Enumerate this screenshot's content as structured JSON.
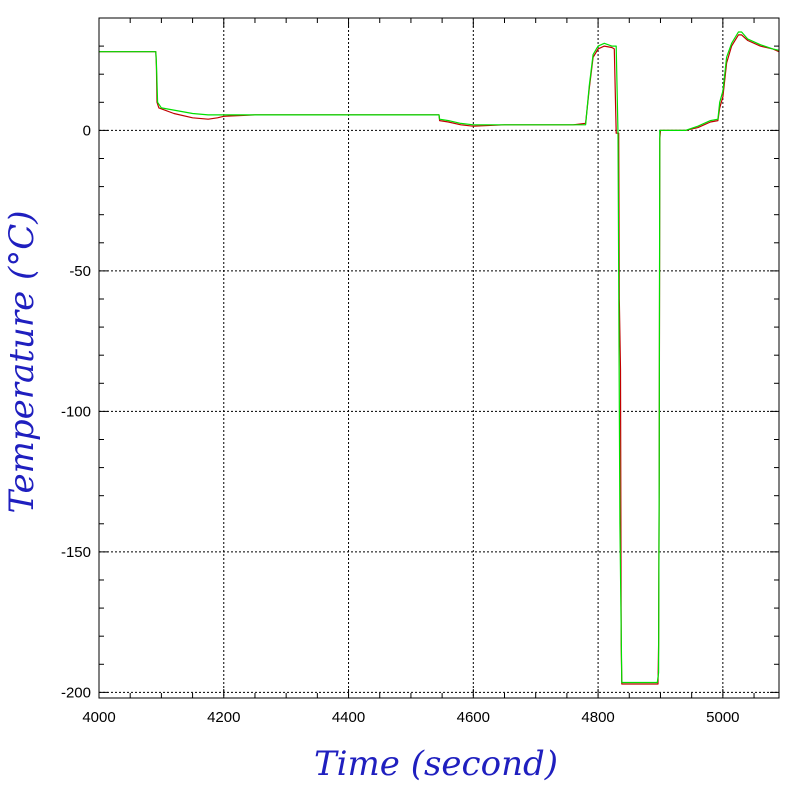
{
  "chart_data": {
    "type": "line",
    "xlabel": "Time (second)",
    "ylabel": "Temperature (°C)",
    "xlim": [
      4000,
      5090
    ],
    "ylim": [
      -202,
      40
    ],
    "grid": true,
    "x_ticks": [
      4000,
      4200,
      4400,
      4600,
      4800,
      5000
    ],
    "y_ticks": [
      0,
      -50,
      -100,
      -150,
      -200
    ],
    "x_tick_labels": [
      "4000",
      "4200",
      "4400",
      "4600",
      "4800",
      "5000"
    ],
    "y_tick_labels": [
      "0",
      "-50",
      "-100",
      "-150",
      "-200"
    ],
    "series": [
      {
        "color": "#c00000",
        "points": [
          [
            4000,
            28
          ],
          [
            4091,
            28
          ],
          [
            4092,
            23
          ],
          [
            4093,
            10
          ],
          [
            4096,
            8
          ],
          [
            4120,
            6
          ],
          [
            4150,
            4.5
          ],
          [
            4175,
            4
          ],
          [
            4190,
            4.5
          ],
          [
            4200,
            5
          ],
          [
            4250,
            5.5
          ],
          [
            4300,
            5.5
          ],
          [
            4400,
            5.5
          ],
          [
            4545,
            5.5
          ],
          [
            4546,
            3.5
          ],
          [
            4560,
            3
          ],
          [
            4580,
            2
          ],
          [
            4600,
            1.5
          ],
          [
            4650,
            2
          ],
          [
            4700,
            2
          ],
          [
            4760,
            2
          ],
          [
            4780,
            2.5
          ],
          [
            4786,
            15
          ],
          [
            4792,
            26
          ],
          [
            4800,
            29
          ],
          [
            4810,
            30
          ],
          [
            4822,
            29.5
          ],
          [
            4826,
            29
          ],
          [
            4829,
            -1
          ],
          [
            4833,
            -1
          ],
          [
            4834,
            -60
          ],
          [
            4836,
            -85
          ],
          [
            4837,
            -183
          ],
          [
            4838,
            -197
          ],
          [
            4860,
            -197
          ],
          [
            4896,
            -197
          ],
          [
            4897,
            -183
          ],
          [
            4898,
            -125
          ],
          [
            4899,
            -3
          ],
          [
            4900,
            0
          ],
          [
            4940,
            0
          ],
          [
            4960,
            1
          ],
          [
            4980,
            3
          ],
          [
            4992,
            3.5
          ],
          [
            4995,
            8
          ],
          [
            5000,
            12
          ],
          [
            5006,
            24
          ],
          [
            5014,
            30
          ],
          [
            5025,
            34
          ],
          [
            5030,
            34
          ],
          [
            5040,
            32
          ],
          [
            5060,
            30
          ],
          [
            5080,
            29
          ],
          [
            5090,
            28
          ]
        ]
      },
      {
        "color": "#00e000",
        "points": [
          [
            4000,
            28
          ],
          [
            4091,
            28
          ],
          [
            4092,
            24
          ],
          [
            4094,
            10
          ],
          [
            4100,
            8
          ],
          [
            4150,
            6
          ],
          [
            4175,
            5.5
          ],
          [
            4200,
            5.5
          ],
          [
            4250,
            5.5
          ],
          [
            4300,
            5.5
          ],
          [
            4400,
            5.5
          ],
          [
            4545,
            5.5
          ],
          [
            4546,
            4
          ],
          [
            4560,
            3.5
          ],
          [
            4580,
            2.5
          ],
          [
            4600,
            2
          ],
          [
            4650,
            2
          ],
          [
            4700,
            2
          ],
          [
            4760,
            2
          ],
          [
            4780,
            2
          ],
          [
            4786,
            16
          ],
          [
            4792,
            27
          ],
          [
            4800,
            30
          ],
          [
            4810,
            31
          ],
          [
            4822,
            30
          ],
          [
            4826,
            30
          ],
          [
            4829,
            30
          ],
          [
            4832,
            -1
          ],
          [
            4835,
            -140
          ],
          [
            4838,
            -196.5
          ],
          [
            4860,
            -196.5
          ],
          [
            4895,
            -196.5
          ],
          [
            4897,
            -193
          ],
          [
            4898,
            -120
          ],
          [
            4899,
            0
          ],
          [
            4900,
            0
          ],
          [
            4940,
            0
          ],
          [
            4960,
            1.5
          ],
          [
            4980,
            3.5
          ],
          [
            4992,
            4
          ],
          [
            4995,
            10
          ],
          [
            5000,
            14
          ],
          [
            5006,
            26
          ],
          [
            5014,
            31
          ],
          [
            5025,
            35
          ],
          [
            5030,
            35
          ],
          [
            5040,
            32.5
          ],
          [
            5060,
            30.5
          ],
          [
            5080,
            29
          ],
          [
            5090,
            28.5
          ]
        ]
      }
    ]
  }
}
